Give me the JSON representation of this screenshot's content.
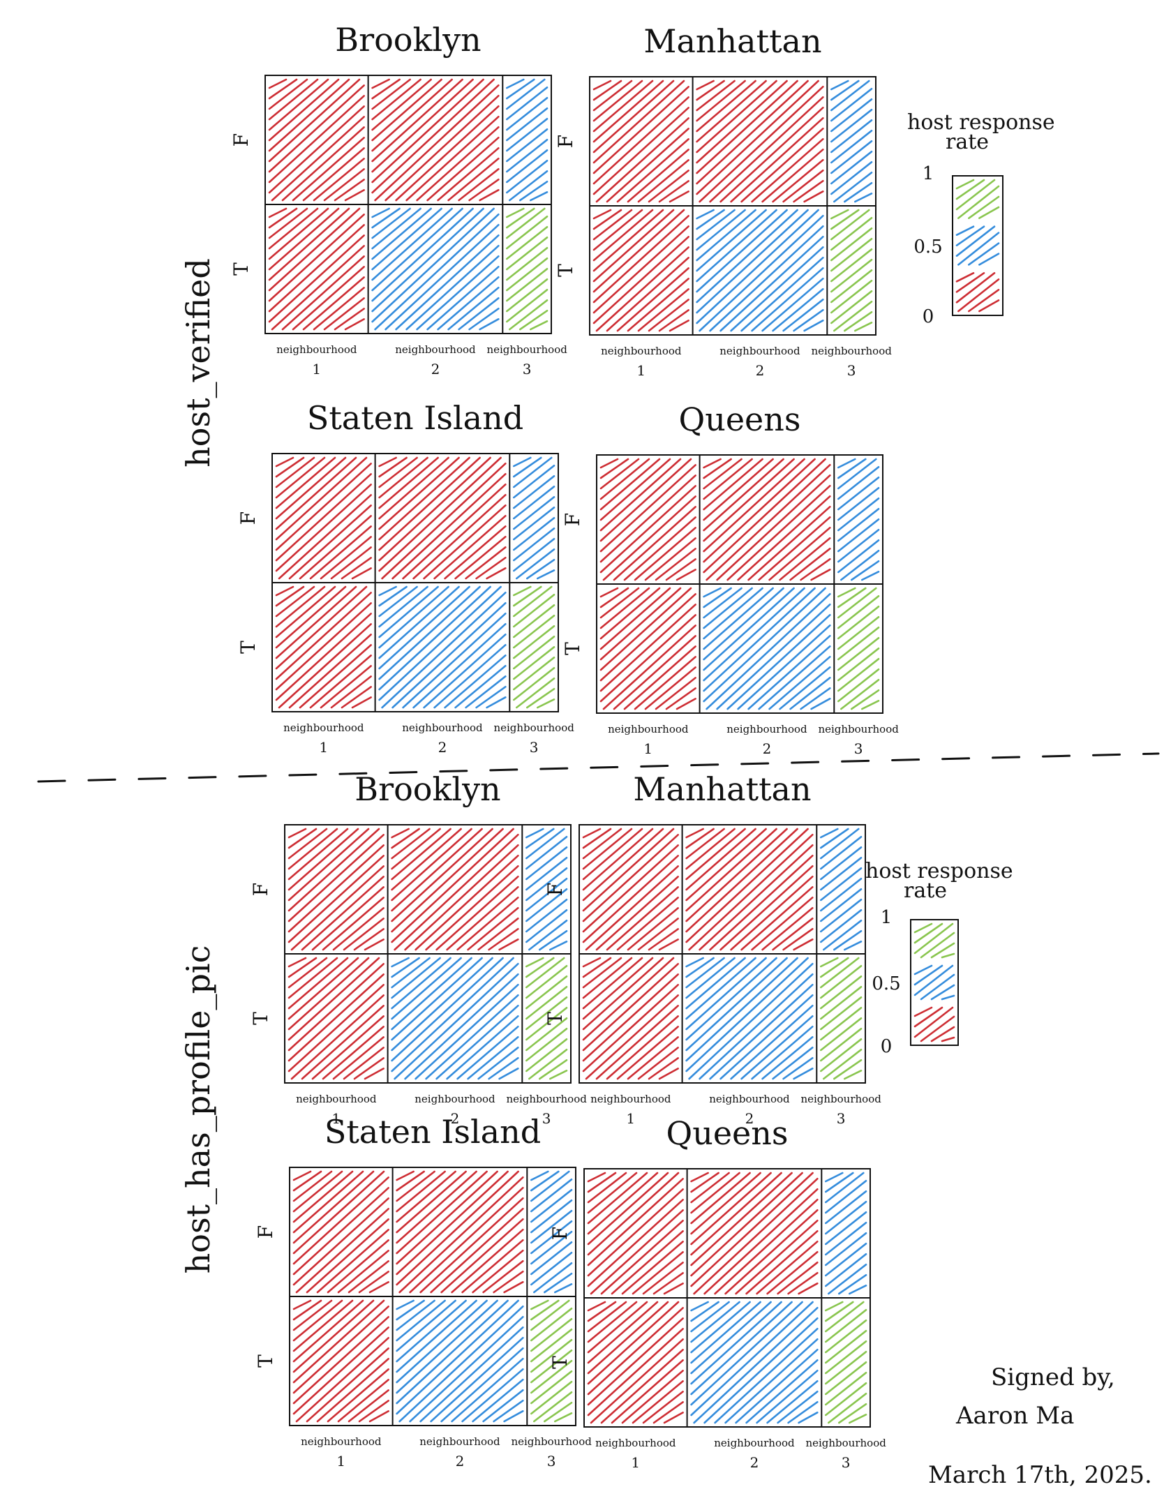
{
  "facets": [
    {
      "row_label": "host_verified",
      "legend": {
        "title_line1": "host response",
        "title_line2": "rate",
        "ticks": [
          "1",
          "0.5",
          "0"
        ]
      },
      "panels": [
        {
          "title": "Brooklyn"
        },
        {
          "title": "Manhattan"
        },
        {
          "title": "Staten    Island"
        },
        {
          "title": "Queens"
        }
      ]
    },
    {
      "row_label": "host_has_profile_pic",
      "legend": {
        "title_line1": "host response",
        "title_line2": "rate",
        "ticks": [
          "1",
          "0.5",
          "0"
        ]
      },
      "panels": [
        {
          "title": "Brooklyn"
        },
        {
          "title": "Manhattan"
        },
        {
          "title": "Staten    Island"
        },
        {
          "title": "Queens"
        }
      ]
    }
  ],
  "axis": {
    "y_labels": [
      "F",
      "T"
    ],
    "x_labels": [
      {
        "line1": "neighbourhood",
        "line2": "1"
      },
      {
        "line1": "neighbourhood",
        "line2": "2"
      },
      {
        "line1": "neighbourhood",
        "line2": "3"
      }
    ]
  },
  "cell_colors": {
    "F": [
      "red",
      "red",
      "blue"
    ],
    "T": [
      "red",
      "blue",
      "green"
    ]
  },
  "legend_bands": [
    {
      "level": "high (0.67-1)",
      "color": "green"
    },
    {
      "level": "medium (0.33-0.67)",
      "color": "blue"
    },
    {
      "level": "low (0-0.33)",
      "color": "red"
    }
  ],
  "colors": {
    "red": "#c8161d",
    "blue": "#1e7fd8",
    "green": "#7cbf3b",
    "ink": "#111111"
  },
  "signature": {
    "line1": "Signed by,",
    "line2": "Aaron Ma",
    "line3": "March 17th, 2025."
  }
}
